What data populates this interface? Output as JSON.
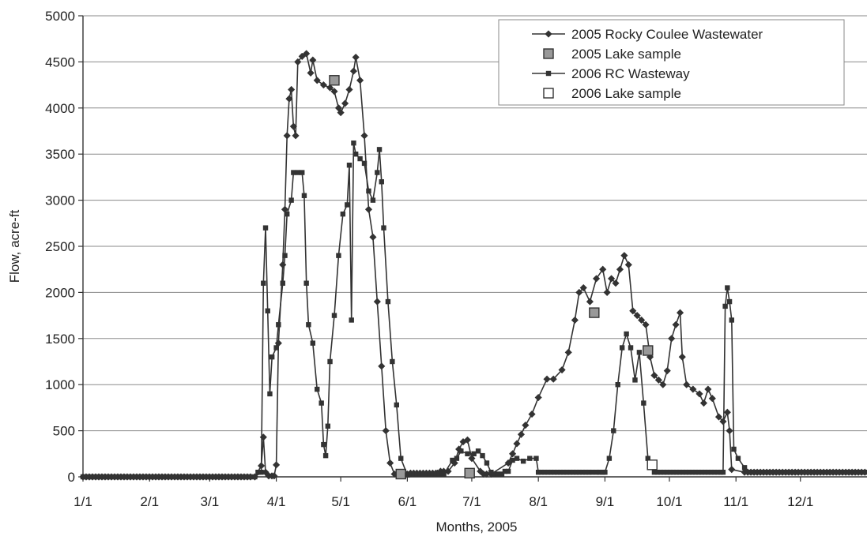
{
  "chart_data": {
    "type": "line",
    "title": "",
    "xlabel": "Months, 2005",
    "ylabel": "Flow, acre-ft",
    "ylim": [
      0,
      5000
    ],
    "yticks": [
      0,
      500,
      1000,
      1500,
      2000,
      2500,
      3000,
      3500,
      4000,
      4500,
      5000
    ],
    "xlim": [
      "2005-01-01",
      "2005-12-31"
    ],
    "xticks": [
      {
        "date": "2005-01-01",
        "label": "1/1"
      },
      {
        "date": "2005-02-01",
        "label": "2/1"
      },
      {
        "date": "2005-03-01",
        "label": "3/1"
      },
      {
        "date": "2005-04-01",
        "label": "4/1"
      },
      {
        "date": "2005-05-01",
        "label": "5/1"
      },
      {
        "date": "2005-06-01",
        "label": "6/1"
      },
      {
        "date": "2005-07-01",
        "label": "7/1"
      },
      {
        "date": "2005-08-01",
        "label": "8/1"
      },
      {
        "date": "2005-09-01",
        "label": "9/1"
      },
      {
        "date": "2005-10-01",
        "label": "10/1"
      },
      {
        "date": "2005-11-01",
        "label": "11/1"
      },
      {
        "date": "2005-12-01",
        "label": "12/1"
      }
    ],
    "grid": "horizontal",
    "legend_position": "top-right",
    "series": [
      {
        "name": "2005 Rocky Coulee Wastewater",
        "style": "line-diamond",
        "color": "#333333",
        "points": [
          [
            "2005-01-01",
            0
          ],
          [
            "2005-03-22",
            0
          ],
          [
            "2005-03-25",
            120
          ],
          [
            "2005-03-26",
            430
          ],
          [
            "2005-03-27",
            50
          ],
          [
            "2005-03-31",
            10
          ],
          [
            "2005-04-01",
            130
          ],
          [
            "2005-04-02",
            1450
          ],
          [
            "2005-04-04",
            2300
          ],
          [
            "2005-04-05",
            2900
          ],
          [
            "2005-04-06",
            3700
          ],
          [
            "2005-04-07",
            4100
          ],
          [
            "2005-04-08",
            4200
          ],
          [
            "2005-04-09",
            3800
          ],
          [
            "2005-04-10",
            3700
          ],
          [
            "2005-04-11",
            4500
          ],
          [
            "2005-04-13",
            4560
          ],
          [
            "2005-04-15",
            4590
          ],
          [
            "2005-04-17",
            4380
          ],
          [
            "2005-04-18",
            4520
          ],
          [
            "2005-04-20",
            4300
          ],
          [
            "2005-04-23",
            4250
          ],
          [
            "2005-04-26",
            4220
          ],
          [
            "2005-04-28",
            4180
          ],
          [
            "2005-04-30",
            4000
          ],
          [
            "2005-05-01",
            3950
          ],
          [
            "2005-05-03",
            4050
          ],
          [
            "2005-05-05",
            4200
          ],
          [
            "2005-05-07",
            4400
          ],
          [
            "2005-05-08",
            4550
          ],
          [
            "2005-05-10",
            4300
          ],
          [
            "2005-05-12",
            3700
          ],
          [
            "2005-05-14",
            2900
          ],
          [
            "2005-05-16",
            2600
          ],
          [
            "2005-05-18",
            1900
          ],
          [
            "2005-05-20",
            1200
          ],
          [
            "2005-05-22",
            500
          ],
          [
            "2005-05-24",
            150
          ],
          [
            "2005-05-26",
            30
          ],
          [
            "2005-06-01",
            30
          ],
          [
            "2005-06-15",
            40
          ],
          [
            "2005-06-20",
            60
          ],
          [
            "2005-06-23",
            150
          ],
          [
            "2005-06-25",
            300
          ],
          [
            "2005-06-27",
            380
          ],
          [
            "2005-06-29",
            400
          ],
          [
            "2005-07-01",
            200
          ],
          [
            "2005-07-05",
            60
          ],
          [
            "2005-07-10",
            30
          ],
          [
            "2005-07-18",
            150
          ],
          [
            "2005-07-20",
            250
          ],
          [
            "2005-07-22",
            360
          ],
          [
            "2005-07-24",
            460
          ],
          [
            "2005-07-26",
            560
          ],
          [
            "2005-07-29",
            680
          ],
          [
            "2005-08-01",
            860
          ],
          [
            "2005-08-05",
            1060
          ],
          [
            "2005-08-08",
            1060
          ],
          [
            "2005-08-12",
            1160
          ],
          [
            "2005-08-15",
            1350
          ],
          [
            "2005-08-18",
            1700
          ],
          [
            "2005-08-20",
            2000
          ],
          [
            "2005-08-22",
            2050
          ],
          [
            "2005-08-25",
            1900
          ],
          [
            "2005-08-28",
            2150
          ],
          [
            "2005-08-31",
            2250
          ],
          [
            "2005-09-02",
            2000
          ],
          [
            "2005-09-04",
            2150
          ],
          [
            "2005-09-06",
            2100
          ],
          [
            "2005-09-08",
            2250
          ],
          [
            "2005-09-10",
            2400
          ],
          [
            "2005-09-12",
            2300
          ],
          [
            "2005-09-14",
            1800
          ],
          [
            "2005-09-16",
            1750
          ],
          [
            "2005-09-18",
            1700
          ],
          [
            "2005-09-20",
            1650
          ],
          [
            "2005-09-22",
            1300
          ],
          [
            "2005-09-24",
            1100
          ],
          [
            "2005-09-26",
            1050
          ],
          [
            "2005-09-28",
            1000
          ],
          [
            "2005-09-30",
            1150
          ],
          [
            "2005-10-02",
            1500
          ],
          [
            "2005-10-04",
            1650
          ],
          [
            "2005-10-06",
            1780
          ],
          [
            "2005-10-07",
            1300
          ],
          [
            "2005-10-09",
            1000
          ],
          [
            "2005-10-12",
            950
          ],
          [
            "2005-10-15",
            900
          ],
          [
            "2005-10-17",
            800
          ],
          [
            "2005-10-19",
            950
          ],
          [
            "2005-10-21",
            850
          ],
          [
            "2005-10-24",
            650
          ],
          [
            "2005-10-26",
            600
          ],
          [
            "2005-10-28",
            700
          ],
          [
            "2005-10-29",
            500
          ],
          [
            "2005-10-30",
            80
          ],
          [
            "2005-11-05",
            50
          ],
          [
            "2005-12-31",
            50
          ]
        ]
      },
      {
        "name": "2005 Lake sample",
        "style": "marker-square-filled",
        "color": "#999999",
        "points": [
          [
            "2005-04-28",
            4300
          ],
          [
            "2005-05-29",
            30
          ],
          [
            "2005-06-30",
            40
          ],
          [
            "2005-08-27",
            1780
          ],
          [
            "2005-09-21",
            1370
          ]
        ]
      },
      {
        "name": "2006 RC Wasteway",
        "style": "line-square",
        "color": "#333333",
        "points": [
          [
            "2005-01-01",
            0
          ],
          [
            "2005-03-22",
            0
          ],
          [
            "2005-03-25",
            50
          ],
          [
            "2005-03-26",
            2100
          ],
          [
            "2005-03-27",
            2700
          ],
          [
            "2005-03-28",
            1800
          ],
          [
            "2005-03-29",
            900
          ],
          [
            "2005-03-30",
            1300
          ],
          [
            "2005-04-01",
            1400
          ],
          [
            "2005-04-02",
            1650
          ],
          [
            "2005-04-04",
            2100
          ],
          [
            "2005-04-05",
            2400
          ],
          [
            "2005-04-06",
            2850
          ],
          [
            "2005-04-08",
            3000
          ],
          [
            "2005-04-09",
            3300
          ],
          [
            "2005-04-11",
            3300
          ],
          [
            "2005-04-13",
            3300
          ],
          [
            "2005-04-14",
            3050
          ],
          [
            "2005-04-15",
            2100
          ],
          [
            "2005-04-16",
            1650
          ],
          [
            "2005-04-18",
            1450
          ],
          [
            "2005-04-20",
            950
          ],
          [
            "2005-04-22",
            800
          ],
          [
            "2005-04-23",
            350
          ],
          [
            "2005-04-24",
            230
          ],
          [
            "2005-04-25",
            550
          ],
          [
            "2005-04-26",
            1250
          ],
          [
            "2005-04-28",
            1750
          ],
          [
            "2005-04-30",
            2400
          ],
          [
            "2005-05-02",
            2850
          ],
          [
            "2005-05-04",
            2950
          ],
          [
            "2005-05-05",
            3380
          ],
          [
            "2005-05-06",
            1700
          ],
          [
            "2005-05-07",
            3620
          ],
          [
            "2005-05-08",
            3500
          ],
          [
            "2005-05-10",
            3450
          ],
          [
            "2005-05-12",
            3400
          ],
          [
            "2005-05-14",
            3100
          ],
          [
            "2005-05-16",
            3000
          ],
          [
            "2005-05-18",
            3300
          ],
          [
            "2005-05-19",
            3550
          ],
          [
            "2005-05-20",
            3200
          ],
          [
            "2005-05-21",
            2700
          ],
          [
            "2005-05-23",
            1900
          ],
          [
            "2005-05-25",
            1250
          ],
          [
            "2005-05-27",
            780
          ],
          [
            "2005-05-29",
            200
          ],
          [
            "2005-06-01",
            20
          ],
          [
            "2005-06-18",
            30
          ],
          [
            "2005-06-22",
            180
          ],
          [
            "2005-06-24",
            200
          ],
          [
            "2005-06-26",
            280
          ],
          [
            "2005-06-29",
            250
          ],
          [
            "2005-07-02",
            250
          ],
          [
            "2005-07-04",
            280
          ],
          [
            "2005-07-06",
            230
          ],
          [
            "2005-07-08",
            150
          ],
          [
            "2005-07-10",
            50
          ],
          [
            "2005-07-15",
            30
          ],
          [
            "2005-07-18",
            60
          ],
          [
            "2005-07-20",
            180
          ],
          [
            "2005-07-22",
            200
          ],
          [
            "2005-07-25",
            170
          ],
          [
            "2005-07-28",
            200
          ],
          [
            "2005-07-31",
            200
          ],
          [
            "2005-08-01",
            50
          ],
          [
            "2005-08-28",
            50
          ],
          [
            "2005-09-01",
            50
          ],
          [
            "2005-09-03",
            200
          ],
          [
            "2005-09-05",
            500
          ],
          [
            "2005-09-07",
            1000
          ],
          [
            "2005-09-09",
            1400
          ],
          [
            "2005-09-11",
            1550
          ],
          [
            "2005-09-13",
            1400
          ],
          [
            "2005-09-15",
            1050
          ],
          [
            "2005-09-17",
            1350
          ],
          [
            "2005-09-19",
            800
          ],
          [
            "2005-09-21",
            200
          ],
          [
            "2005-09-24",
            50
          ],
          [
            "2005-10-26",
            50
          ],
          [
            "2005-10-27",
            1850
          ],
          [
            "2005-10-28",
            2050
          ],
          [
            "2005-10-29",
            1900
          ],
          [
            "2005-10-30",
            1700
          ],
          [
            "2005-10-31",
            300
          ],
          [
            "2005-11-02",
            200
          ],
          [
            "2005-11-05",
            100
          ],
          [
            "2005-11-08",
            50
          ],
          [
            "2005-12-31",
            50
          ]
        ]
      },
      {
        "name": "2006 Lake sample",
        "style": "marker-square-open",
        "color": "#ffffff",
        "points": [
          [
            "2005-09-23",
            130
          ]
        ]
      }
    ]
  }
}
